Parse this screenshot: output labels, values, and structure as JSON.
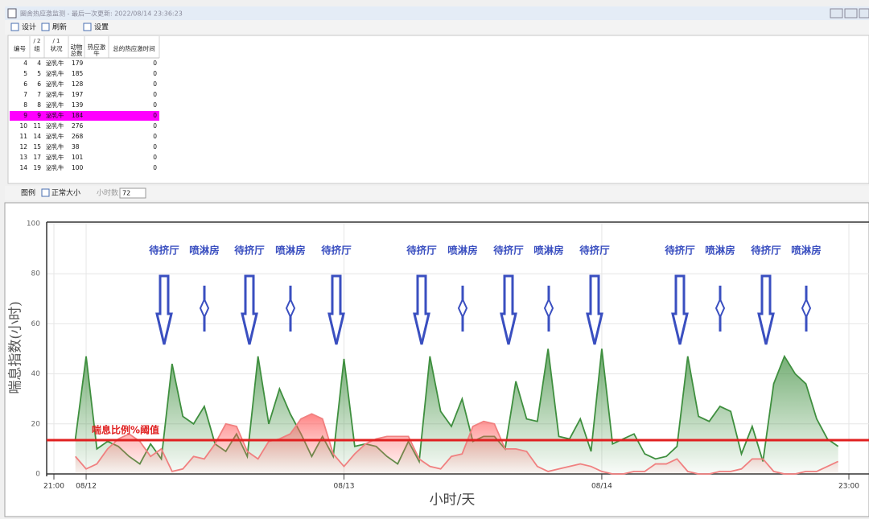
{
  "window": {
    "title": "圈舍热应激监测 - 最后一次更新: 2022/08/14 23:36:23"
  },
  "toolbar": {
    "items": [
      "设计",
      "刷新",
      "设置"
    ]
  },
  "table": {
    "headers": [
      [
        "编号"
      ],
      [
        "组"
      ],
      [
        "状况"
      ],
      [
        "动物",
        "总数"
      ],
      [
        "热应激",
        "牛"
      ],
      [
        "总的热应激时间"
      ]
    ],
    "sort_marks": [
      null,
      "/ 2",
      "/ 1",
      null,
      null,
      null
    ],
    "selected_row": 5,
    "rows": [
      [
        4,
        4,
        "泌乳牛",
        179,
        null,
        0
      ],
      [
        5,
        5,
        "泌乳牛",
        185,
        null,
        0
      ],
      [
        6,
        6,
        "泌乳牛",
        128,
        null,
        0
      ],
      [
        7,
        7,
        "泌乳牛",
        197,
        null,
        0
      ],
      [
        8,
        8,
        "泌乳牛",
        139,
        null,
        0
      ],
      [
        9,
        9,
        "泌乳牛",
        184,
        null,
        0
      ],
      [
        10,
        11,
        "泌乳牛",
        276,
        null,
        0
      ],
      [
        11,
        14,
        "泌乳牛",
        268,
        null,
        0
      ],
      [
        12,
        15,
        "泌乳牛",
        38,
        null,
        0
      ],
      [
        13,
        17,
        "泌乳牛",
        101,
        null,
        0
      ],
      [
        14,
        19,
        "泌乳牛",
        100,
        null,
        0
      ]
    ]
  },
  "chart_toolbar": {
    "legend": "图例",
    "normal_size": "正常大小",
    "hours_label": "小时数",
    "hours_value": 72
  },
  "chart_data": {
    "type": "area",
    "y_label": "喘息指数(小时)",
    "x_label": "小时/天",
    "xlim": [
      0,
      74
    ],
    "xticks": [
      {
        "value": 0,
        "label": "21:00"
      },
      {
        "value": 3,
        "label": "08/12"
      },
      {
        "value": 27,
        "label": "08/13"
      },
      {
        "value": 51,
        "label": "08/14"
      },
      {
        "value": 74,
        "label": "23:00"
      }
    ],
    "ylim": [
      0,
      100
    ],
    "yticks": [
      0,
      20,
      40,
      60,
      80,
      100
    ],
    "grid": true,
    "x": [
      2,
      3,
      4,
      5,
      6,
      7,
      8,
      9,
      10,
      11,
      12,
      13,
      14,
      15,
      16,
      17,
      18,
      19,
      20,
      21,
      22,
      23,
      24,
      25,
      26,
      27,
      28,
      29,
      30,
      31,
      32,
      33,
      34,
      35,
      36,
      37,
      38,
      39,
      40,
      41,
      42,
      43,
      44,
      45,
      46,
      47,
      48,
      49,
      50,
      51,
      52,
      53,
      54,
      55,
      56,
      57,
      58,
      59,
      60,
      61,
      62,
      63,
      64,
      65,
      66,
      67,
      68,
      69,
      70,
      71,
      72,
      73
    ],
    "series": [
      {
        "color": "#3f8f3f",
        "fill": "green",
        "values": [
          14,
          47,
          10,
          13,
          11,
          7,
          4,
          12,
          6,
          44,
          23,
          20,
          27,
          12,
          9,
          16,
          7,
          47,
          20,
          34,
          24,
          16,
          7,
          15,
          7,
          46,
          11,
          12,
          11,
          7,
          4,
          13,
          5,
          47,
          25,
          19,
          30,
          13,
          15,
          15,
          10,
          37,
          22,
          21,
          50,
          15,
          14,
          22,
          9,
          50,
          12,
          14,
          16,
          8,
          6,
          7,
          11,
          47,
          23,
          21,
          27,
          25,
          8,
          19,
          5,
          36,
          47,
          40,
          36,
          22,
          14,
          11
        ]
      },
      {
        "color": "#f08080",
        "fill": "red",
        "values": [
          7,
          2,
          4,
          10,
          14,
          16,
          13,
          7,
          10,
          1,
          2,
          7,
          6,
          12,
          20,
          19,
          9,
          6,
          13,
          14,
          16,
          22,
          24,
          22,
          8,
          3,
          8,
          12,
          14,
          15,
          15,
          15,
          6,
          3,
          2,
          7,
          8,
          19,
          21,
          20,
          10,
          10,
          9,
          3,
          1,
          2,
          3,
          4,
          3,
          1,
          0,
          0,
          1,
          1,
          4,
          4,
          6,
          1,
          0,
          0,
          1,
          1,
          2,
          6,
          6,
          1,
          0,
          0,
          1,
          1,
          3,
          5
        ]
      }
    ],
    "threshold": {
      "value": 13.5,
      "label": "喘息比例%阈值",
      "color": "#e02020"
    },
    "annotations": [
      "待挤厅",
      "喷淋房",
      "待挤厅",
      "喷淋房",
      "待挤厅",
      "待挤厅",
      "喷淋房",
      "待挤厅",
      "喷淋房",
      "待挤厅",
      "待挤厅",
      "喷淋房",
      "待挤厅",
      "喷淋房"
    ]
  }
}
